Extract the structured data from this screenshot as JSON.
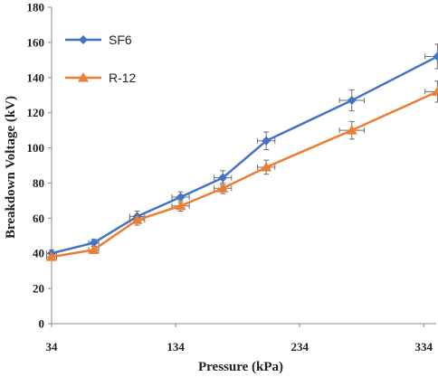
{
  "chart_data": {
    "type": "line",
    "title": "",
    "xlabel": "Pressure (kPa)",
    "ylabel": "Breakdown Voltage (kV)",
    "xlim": [
      34,
      344
    ],
    "ylim": [
      0,
      180
    ],
    "xticks": [
      34,
      134,
      234,
      334
    ],
    "yticks": [
      0,
      20,
      40,
      60,
      80,
      100,
      120,
      140,
      160,
      180
    ],
    "grid": false,
    "legend": "top-left",
    "series": [
      {
        "name": "SF6",
        "color": "#4472C4",
        "marker": "diamond",
        "x": [
          34,
          68,
          103,
          138,
          172,
          207,
          276,
          345
        ],
        "y": [
          40,
          46,
          61,
          72,
          83,
          104,
          127,
          152
        ],
        "y_error": [
          2,
          2,
          3,
          3,
          4,
          5,
          6,
          7
        ],
        "x_error": [
          4,
          4,
          6,
          7,
          7,
          7,
          10,
          10
        ]
      },
      {
        "name": "R-12",
        "color": "#ED7D31",
        "marker": "triangle",
        "x": [
          34,
          68,
          103,
          138,
          172,
          207,
          276,
          345
        ],
        "y": [
          38,
          42,
          59,
          67,
          77,
          89,
          110,
          132
        ],
        "y_error": [
          2,
          2,
          3,
          3,
          3,
          4,
          5,
          6
        ],
        "x_error": [
          4,
          4,
          6,
          7,
          7,
          7,
          10,
          10
        ]
      }
    ]
  }
}
